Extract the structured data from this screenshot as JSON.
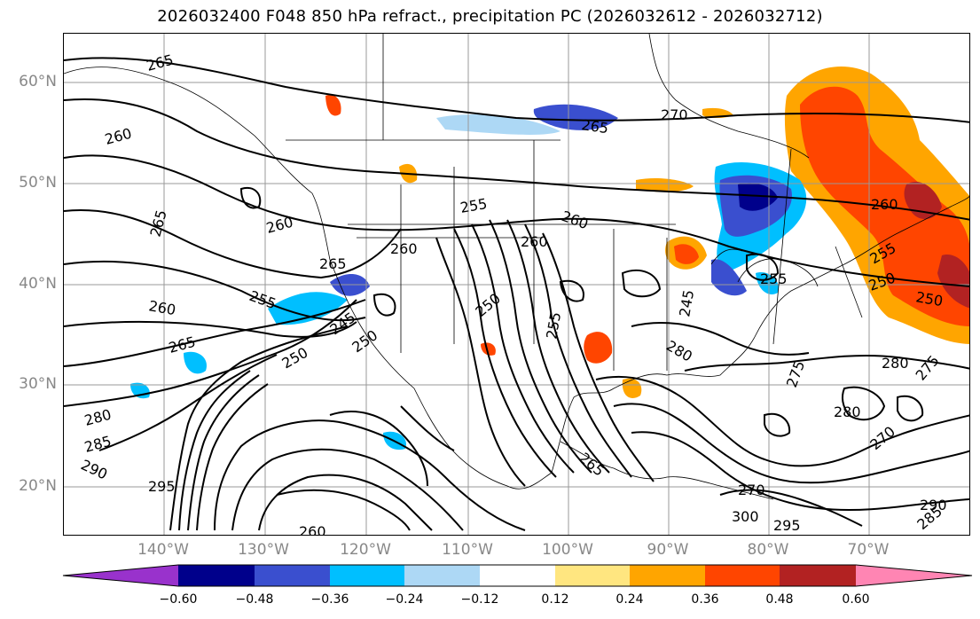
{
  "title": "2026032400 F048 850 hPa refract., precipitation PC (2026032612 - 2026032712)",
  "lat_labels": [
    "60°N",
    "50°N",
    "40°N",
    "30°N",
    "20°N"
  ],
  "lon_labels": [
    "140°W",
    "130°W",
    "120°W",
    "110°W",
    "100°W",
    "90°W",
    "80°W",
    "70°W"
  ],
  "colorbar": {
    "ticks": [
      "−0.60",
      "−0.48",
      "−0.36",
      "−0.24",
      "−0.12",
      "0.12",
      "0.24",
      "0.36",
      "0.48",
      "0.60"
    ],
    "colors": [
      "#9932cc",
      "#00008b",
      "#3a4fcf",
      "#00bfff",
      "#add8f5",
      "#ffffff",
      "#ffe680",
      "#ffa500",
      "#ff4500",
      "#b22222",
      "#ff85b3"
    ]
  },
  "contour_labels": [
    "265",
    "260",
    "265",
    "260",
    "255",
    "265",
    "260",
    "255",
    "260",
    "265",
    "250",
    "245",
    "250",
    "250",
    "255",
    "260",
    "265",
    "270",
    "260",
    "250",
    "250",
    "255",
    "260",
    "280",
    "275",
    "280",
    "275",
    "280",
    "270",
    "280",
    "285",
    "290",
    "295",
    "290",
    "265",
    "270",
    "300",
    "295",
    "285",
    "245",
    "255",
    "260"
  ],
  "colors": {
    "shading_warm": "#ff4500",
    "shading_cool": "#00bfff",
    "contour": "#000000",
    "grid": "#999999"
  }
}
